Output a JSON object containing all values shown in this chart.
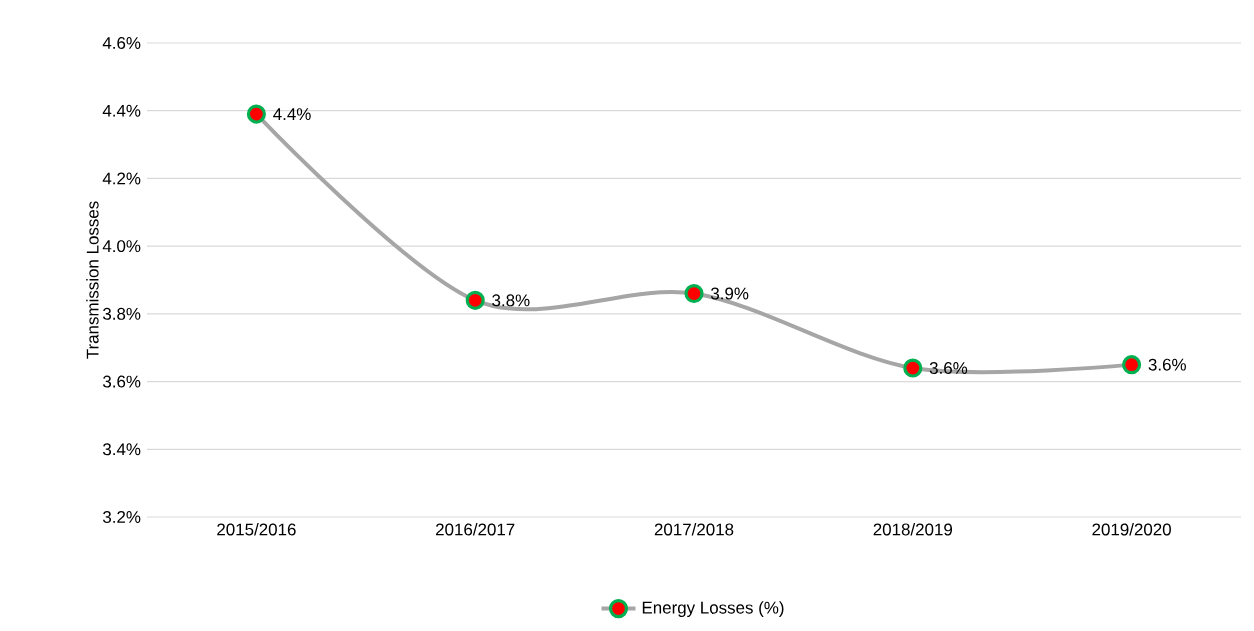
{
  "chart_data": {
    "type": "line",
    "ylabel": "Transmission Losses",
    "categories": [
      "2015/2016",
      "2016/2017",
      "2017/2018",
      "2018/2019",
      "2019/2020"
    ],
    "series": [
      {
        "name": "Energy Losses (%)",
        "color": "#a6a6a6",
        "values": [
          4.39,
          3.84,
          3.86,
          3.64,
          3.65
        ],
        "value_labels": [
          "4.4%",
          "3.8%",
          "3.9%",
          "3.6%",
          "3.6%"
        ]
      }
    ],
    "ylim": [
      3.2,
      4.6
    ],
    "yticks": [
      {
        "value": 3.2,
        "label": "3.2%"
      },
      {
        "value": 3.4,
        "label": "3.4%"
      },
      {
        "value": 3.6,
        "label": "3.6%"
      },
      {
        "value": 3.8,
        "label": "3.8%"
      },
      {
        "value": 4.0,
        "label": "4.0%"
      },
      {
        "value": 4.2,
        "label": "4.2%"
      },
      {
        "value": 4.4,
        "label": "4.4%"
      },
      {
        "value": 4.6,
        "label": "4.6%"
      }
    ],
    "grid": "y",
    "legend": "bottom",
    "marker": "circle",
    "line_style": "solid"
  }
}
